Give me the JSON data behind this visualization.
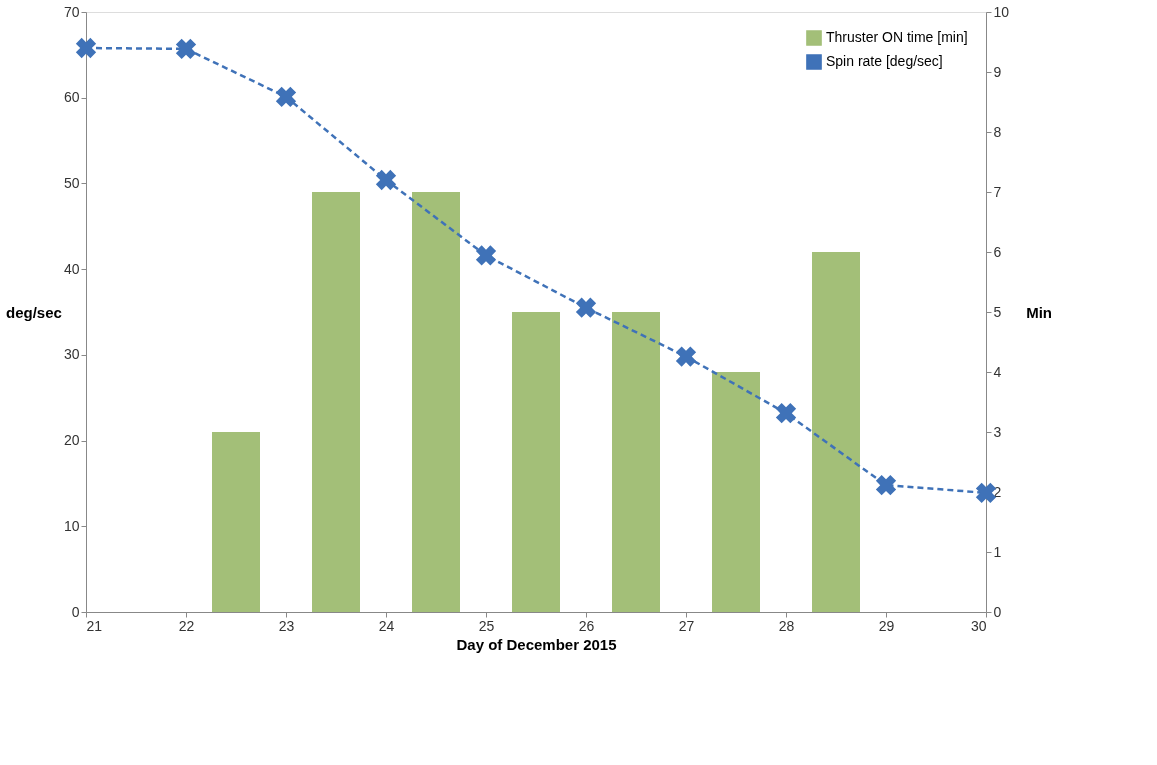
{
  "chart_data": {
    "type": "bar",
    "xlabel": "Day of December 2015",
    "ylabel": "deg/sec",
    "y2label": "Min",
    "xlim": [
      21,
      30
    ],
    "xticks": [
      21,
      22,
      23,
      24,
      25,
      26,
      27,
      28,
      29,
      30
    ],
    "ylim": [
      0,
      70
    ],
    "yticks": [
      0,
      10,
      20,
      30,
      40,
      50,
      60,
      70
    ],
    "y2lim": [
      0,
      10
    ],
    "y2ticks": [
      0,
      1,
      2,
      3,
      4,
      5,
      6,
      7,
      8,
      9,
      10
    ],
    "legend": "top right",
    "grid": false,
    "series": [
      {
        "name": "Thruster ON time [min]",
        "axis": "y2",
        "color": "#a3bf78",
        "x": [
          22.5,
          23.5,
          24.5,
          25.5,
          26.5,
          27.5,
          28.5
        ],
        "values": [
          3,
          7,
          7,
          5,
          5,
          4,
          6
        ]
      },
      {
        "name": "Spin rate [deg/sec]",
        "type": "line",
        "color": "#3f72b8",
        "marker": "cross",
        "line_style": "dashed",
        "x": [
          21,
          22,
          23,
          24,
          25,
          26,
          27,
          28,
          29,
          30
        ],
        "values": [
          65.8,
          65.7,
          60.1,
          50.4,
          41.6,
          35.5,
          29.8,
          23.2,
          14.8,
          13.9
        ]
      }
    ]
  }
}
